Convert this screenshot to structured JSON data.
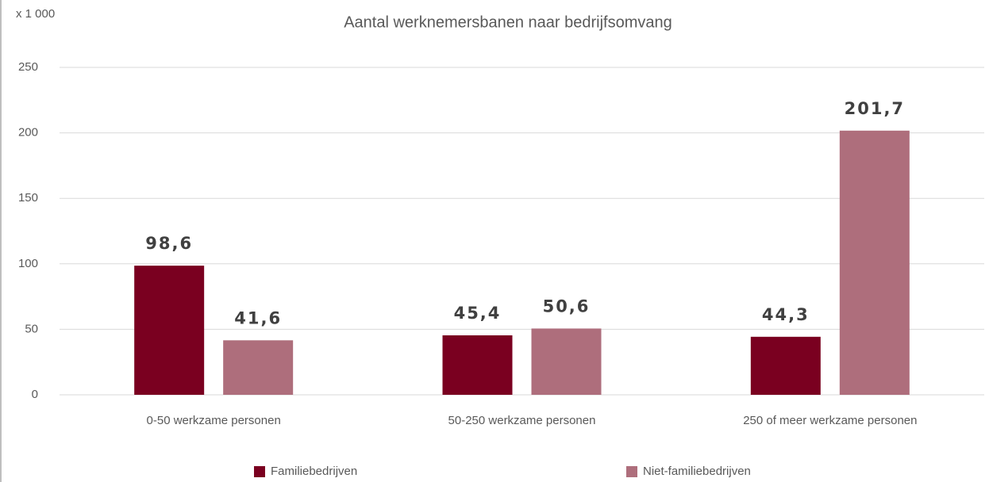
{
  "chart_data": {
    "type": "bar",
    "title": "Aantal werknemersbanen naar bedrijfsomvang",
    "unit_label": "x 1 000",
    "categories": [
      "0-50 werkzame personen",
      "50-250 werkzame personen",
      "250 of meer werkzame personen"
    ],
    "series": [
      {
        "name": "Familiebedrijven",
        "color": "#7a0020",
        "values": [
          98.6,
          45.4,
          44.3
        ],
        "value_labels": [
          "98,6",
          "45,4",
          "44,3"
        ]
      },
      {
        "name": "Niet-familiebedrijven",
        "color": "#ae6e7c",
        "values": [
          41.6,
          50.6,
          201.7
        ],
        "value_labels": [
          "41,6",
          "50,6",
          "201,7"
        ]
      }
    ],
    "ylim": [
      0,
      250
    ],
    "yticks": [
      0,
      50,
      100,
      150,
      200,
      250
    ],
    "grid": true,
    "legend": "bottom"
  }
}
